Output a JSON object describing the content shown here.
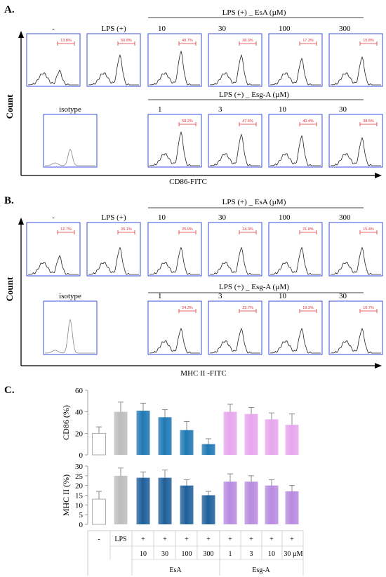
{
  "panel_a": {
    "letter": "A.",
    "y_axis": "Count",
    "x_axis": "CD86-FITC",
    "rows": [
      {
        "group_label": "LPS (+) _ EsA (µM)",
        "panels": [
          {
            "label": "-",
            "percent": "13.8%",
            "peak": 0.3
          },
          {
            "label": "LPS (+)",
            "percent": "50.8%",
            "peak": 0.62
          },
          {
            "label": "10",
            "percent": "49.7%",
            "peak": 0.7
          },
          {
            "label": "30",
            "percent": "38.3%",
            "peak": 0.62
          },
          {
            "label": "100",
            "percent": "17.3%",
            "peak": 0.55
          },
          {
            "label": "300",
            "percent": "15.8%",
            "peak": 0.58
          }
        ]
      },
      {
        "group_label": "LPS (+) _ Esg-A (µM)",
        "panels": [
          {
            "label": "isotype",
            "percent": "",
            "peak": 0.35
          },
          {
            "label": "1",
            "percent": "58.2%",
            "peak": 0.7
          },
          {
            "label": "3",
            "percent": "47.4%",
            "peak": 0.65
          },
          {
            "label": "10",
            "percent": "40.4%",
            "peak": 0.62
          },
          {
            "label": "30",
            "percent": "38.5%",
            "peak": 0.58
          }
        ]
      }
    ]
  },
  "panel_b": {
    "letter": "B.",
    "y_axis": "Count",
    "x_axis": "MHC II -FITC",
    "rows": [
      {
        "group_label": "LPS (+) _ EsA (µM)",
        "panels": [
          {
            "label": "-",
            "percent": "12.7%",
            "peak": 0.38
          },
          {
            "label": "LPS (+)",
            "percent": "26.1%",
            "peak": 0.55
          },
          {
            "label": "10",
            "percent": "25.9%",
            "peak": 0.55
          },
          {
            "label": "30",
            "percent": "24.3%",
            "peak": 0.55
          },
          {
            "label": "100",
            "percent": "21.8%",
            "peak": 0.55
          },
          {
            "label": "300",
            "percent": "15.4%",
            "peak": 0.55
          }
        ]
      },
      {
        "group_label": "LPS (+) _ Esg-A (µM)",
        "panels": [
          {
            "label": "isotype",
            "percent": "",
            "peak": 0.7
          },
          {
            "label": "1",
            "percent": "24.3%",
            "peak": 0.5
          },
          {
            "label": "3",
            "percent": "23.7%",
            "peak": 0.5
          },
          {
            "label": "10",
            "percent": "19.3%",
            "peak": 0.5
          },
          {
            "label": "30",
            "percent": "10.7%",
            "peak": 0.5
          }
        ]
      }
    ]
  },
  "panel_c": {
    "letter": "C.",
    "bar_colors": [
      "#ffffff",
      "#bdbdbd",
      "#1f78b4",
      "#1f78b4",
      "#1f78b4",
      "#1f78b4",
      "#e7a6ee",
      "#e7a6ee",
      "#e7a6ee",
      "#e7a6ee"
    ],
    "bar_colors_mhc": [
      "#ffffff",
      "#bdbdbd",
      "#1f5f9a",
      "#1f5f9a",
      "#1f5f9a",
      "#1f5f9a",
      "#b88be0",
      "#b88be0",
      "#b88be0",
      "#b88be0"
    ],
    "table": {
      "row1": [
        "-",
        "LPS",
        "+",
        "+",
        "+",
        "+",
        "+",
        "+",
        "+",
        "+"
      ],
      "row2": [
        "",
        "",
        "10",
        "30",
        "100",
        "300",
        "1",
        "3",
        "10",
        "30 µM"
      ],
      "groups": [
        "EsA",
        "Esg-A"
      ]
    }
  },
  "chart_data": [
    {
      "type": "bar",
      "ylabel": "CD86 (%)",
      "ylim": [
        0,
        60
      ],
      "yticks": [
        "0",
        "20",
        "40",
        "60"
      ],
      "categories": [
        "-",
        "LPS",
        "EsA 10",
        "EsA 30",
        "EsA 100",
        "EsA 300",
        "Esg-A 1",
        "Esg-A 3",
        "Esg-A 10",
        "Esg-A 30"
      ],
      "values": [
        20,
        40,
        41,
        35,
        23,
        10,
        40,
        38,
        33,
        28
      ],
      "errors": [
        6,
        9,
        7,
        7,
        8,
        5,
        7,
        6,
        6,
        10
      ]
    },
    {
      "type": "bar",
      "ylabel": "MHC II (%)",
      "ylim": [
        0,
        30
      ],
      "yticks": [
        "0",
        "5",
        "10",
        "15",
        "20",
        "25",
        "30"
      ],
      "categories": [
        "-",
        "LPS",
        "EsA 10",
        "EsA 30",
        "EsA 100",
        "EsA 300",
        "Esg-A 1",
        "Esg-A 3",
        "Esg-A 10",
        "Esg-A 30"
      ],
      "values": [
        13,
        25,
        24,
        24,
        20,
        15,
        22,
        22,
        20,
        17
      ],
      "errors": [
        4,
        4,
        3,
        4,
        3,
        2,
        4,
        3,
        3,
        3
      ]
    }
  ]
}
